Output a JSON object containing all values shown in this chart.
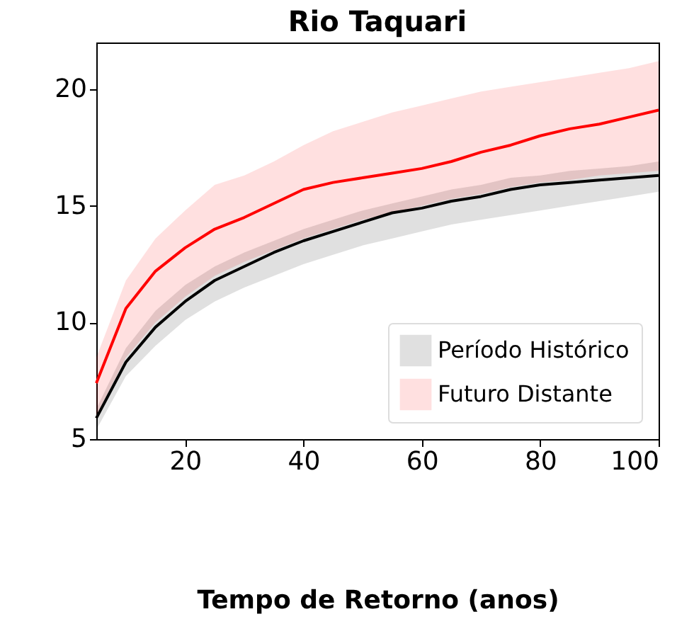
{
  "chart_data": {
    "type": "line",
    "title": "Rio Taquari",
    "xlabel": "Tempo de Retorno (anos)",
    "x": [
      5,
      10,
      15,
      20,
      25,
      30,
      35,
      40,
      45,
      50,
      55,
      60,
      65,
      70,
      75,
      80,
      85,
      90,
      95,
      100
    ],
    "series": [
      {
        "name": "Período Histórico",
        "color": "#000000",
        "values": [
          5.9,
          8.3,
          9.8,
          10.9,
          11.8,
          12.4,
          13.0,
          13.5,
          13.9,
          14.3,
          14.7,
          14.9,
          15.2,
          15.4,
          15.7,
          15.9,
          16.0,
          16.1,
          16.2,
          16.3
        ],
        "lower": [
          5.4,
          7.7,
          9.0,
          10.1,
          10.9,
          11.5,
          12.0,
          12.5,
          12.9,
          13.3,
          13.6,
          13.9,
          14.2,
          14.4,
          14.6,
          14.8,
          15.0,
          15.2,
          15.4,
          15.6
        ],
        "upper": [
          6.3,
          8.9,
          10.5,
          11.6,
          12.4,
          13.0,
          13.5,
          14.0,
          14.4,
          14.8,
          15.1,
          15.4,
          15.7,
          15.9,
          16.2,
          16.3,
          16.5,
          16.6,
          16.7,
          16.9
        ]
      },
      {
        "name": "Futuro Distante",
        "color": "#ff0000",
        "values": [
          7.4,
          10.6,
          12.2,
          13.2,
          14.0,
          14.5,
          15.1,
          15.7,
          16.0,
          16.2,
          16.4,
          16.6,
          16.9,
          17.3,
          17.6,
          18.0,
          18.3,
          18.5,
          18.8,
          19.1
        ],
        "lower": [
          6.0,
          8.5,
          10.0,
          11.1,
          12.0,
          12.6,
          13.1,
          13.6,
          14.0,
          14.4,
          14.7,
          15.0,
          15.3,
          15.5,
          15.8,
          16.0,
          16.1,
          16.3,
          16.4,
          16.5
        ],
        "upper": [
          8.5,
          11.8,
          13.6,
          14.8,
          15.9,
          16.3,
          16.9,
          17.6,
          18.2,
          18.6,
          19.0,
          19.3,
          19.6,
          19.9,
          20.1,
          20.3,
          20.5,
          20.7,
          20.9,
          21.2
        ]
      }
    ],
    "xlim": [
      5,
      100
    ],
    "xticks": [
      20,
      40,
      60,
      80,
      100
    ],
    "ylim": [
      5,
      22
    ],
    "yticks": [
      5,
      10,
      15,
      20
    ],
    "grid": false,
    "legend": "bottom right",
    "marker": "none",
    "line_style": "solid"
  }
}
